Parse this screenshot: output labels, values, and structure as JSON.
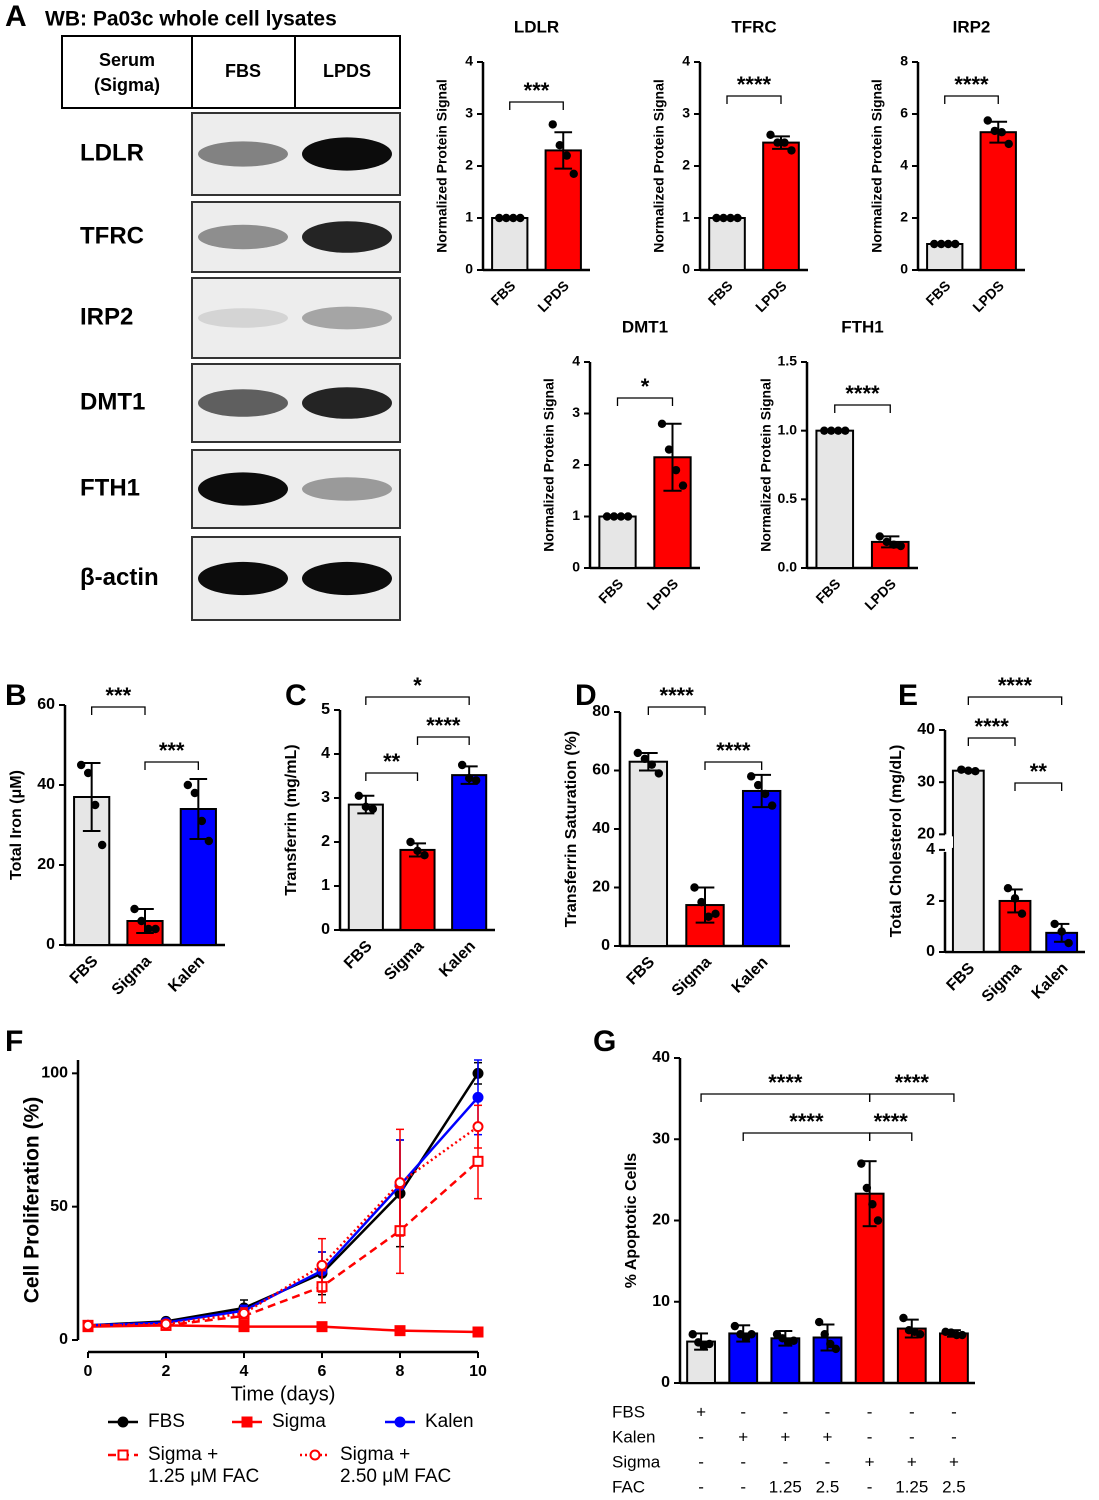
{
  "chart_data": [
    {
      "type": "blot",
      "panel": "A",
      "title": "WB: Pa03c whole cell lysates",
      "header_label": [
        "Serum",
        "(Sigma)"
      ],
      "columns": [
        "FBS",
        "LPDS"
      ],
      "rows": [
        "LDLR",
        "TFRC",
        "IRP2",
        "DMT1",
        "FTH1",
        "β-actin"
      ]
    },
    {
      "type": "bar",
      "title": "LDLR",
      "y_label": "Normalized Protein Signal",
      "categories": [
        "FBS",
        "LPDS"
      ],
      "values": [
        1,
        2.3
      ],
      "errors": [
        0,
        0.35
      ],
      "points": [
        [
          1,
          1,
          1,
          1
        ],
        [
          2.8,
          2.4,
          2.2,
          1.85
        ]
      ],
      "colors": [
        "#e6e6e6",
        "#ff0000"
      ],
      "ylim": [
        0,
        4
      ],
      "yticks": [
        0,
        1,
        2,
        3,
        4
      ],
      "significance": [
        {
          "from": 0,
          "to": 1,
          "label": "***"
        }
      ]
    },
    {
      "type": "bar",
      "title": "TFRC",
      "y_label": "Normalized Protein Signal",
      "categories": [
        "FBS",
        "LPDS"
      ],
      "values": [
        1,
        2.45
      ],
      "errors": [
        0,
        0.12
      ],
      "points": [
        [
          1,
          1,
          1,
          1
        ],
        [
          2.6,
          2.45,
          2.45,
          2.3
        ]
      ],
      "colors": [
        "#e6e6e6",
        "#ff0000"
      ],
      "ylim": [
        0,
        4
      ],
      "yticks": [
        0,
        1,
        2,
        3,
        4
      ],
      "significance": [
        {
          "from": 0,
          "to": 1,
          "label": "****"
        }
      ]
    },
    {
      "type": "bar",
      "title": "IRP2",
      "y_label": "Normalized Protein Signal",
      "categories": [
        "FBS",
        "LPDS"
      ],
      "values": [
        1,
        5.3
      ],
      "errors": [
        0,
        0.4
      ],
      "points": [
        [
          1,
          1,
          1,
          1
        ],
        [
          5.75,
          5.35,
          5.3,
          4.85
        ]
      ],
      "colors": [
        "#e6e6e6",
        "#ff0000"
      ],
      "ylim": [
        0,
        8
      ],
      "yticks": [
        0,
        2,
        4,
        6,
        8
      ],
      "significance": [
        {
          "from": 0,
          "to": 1,
          "label": "****"
        }
      ]
    },
    {
      "type": "bar",
      "title": "DMT1",
      "y_label": "Normalized Protein Signal",
      "categories": [
        "FBS",
        "LPDS"
      ],
      "values": [
        1,
        2.15
      ],
      "errors": [
        0,
        0.65
      ],
      "points": [
        [
          1,
          1,
          1,
          1
        ],
        [
          2.8,
          2.3,
          1.9,
          1.6
        ]
      ],
      "colors": [
        "#e6e6e6",
        "#ff0000"
      ],
      "ylim": [
        0,
        4
      ],
      "yticks": [
        0,
        1,
        2,
        3,
        4
      ],
      "significance": [
        {
          "from": 0,
          "to": 1,
          "label": "*"
        }
      ]
    },
    {
      "type": "bar",
      "title": "FTH1",
      "y_label": "Normalized Protein Signal",
      "categories": [
        "FBS",
        "LPDS"
      ],
      "values": [
        1,
        0.19
      ],
      "errors": [
        0,
        0.04
      ],
      "points": [
        [
          1,
          1,
          1,
          1
        ],
        [
          0.23,
          0.19,
          0.17,
          0.16
        ]
      ],
      "colors": [
        "#e6e6e6",
        "#ff0000"
      ],
      "ylim": [
        0,
        1.5
      ],
      "yticks": [
        {
          "value": 0,
          "label": "0.0"
        },
        0.5,
        {
          "value": 1,
          "label": "1.0"
        },
        1.5
      ],
      "significance": [
        {
          "from": 0,
          "to": 1,
          "label": "****"
        }
      ]
    },
    {
      "type": "bar",
      "panel": "B",
      "y_label": "Total Iron (μM)",
      "categories": [
        "FBS",
        "Sigma",
        "Kalen"
      ],
      "values": [
        37,
        6,
        34
      ],
      "errors": [
        8.5,
        3,
        7.5
      ],
      "points": [
        [
          45,
          43,
          35,
          25
        ],
        [
          9,
          6,
          4,
          4
        ],
        [
          40,
          38,
          31,
          26
        ]
      ],
      "colors": [
        "#e6e6e6",
        "#ff0000",
        "#0000ff"
      ],
      "ylim": [
        0,
        60
      ],
      "yticks": [
        0,
        20,
        40,
        60
      ],
      "significance": [
        {
          "from": 0,
          "to": 1,
          "label": "***"
        },
        {
          "from": 1,
          "to": 2,
          "label": "***"
        }
      ]
    },
    {
      "type": "bar",
      "panel": "C",
      "y_label": "Transferrin (mg/mL)",
      "categories": [
        "FBS",
        "Sigma",
        "Kalen"
      ],
      "values": [
        2.85,
        1.82,
        3.52
      ],
      "errors": [
        0.2,
        0.15,
        0.2
      ],
      "points": [
        [
          3.05,
          2.8,
          2.75
        ],
        [
          2.0,
          1.8,
          1.7
        ],
        [
          3.75,
          3.45,
          3.4
        ]
      ],
      "colors": [
        "#e6e6e6",
        "#ff0000",
        "#0000ff"
      ],
      "ylim": [
        0,
        5
      ],
      "yticks": [
        0,
        1,
        2,
        3,
        4,
        5
      ],
      "significance": [
        {
          "from": 0,
          "to": 2,
          "label": "*"
        },
        {
          "from": 1,
          "to": 2,
          "label": "****"
        },
        {
          "from": 0,
          "to": 1,
          "label": "**"
        }
      ]
    },
    {
      "type": "bar",
      "panel": "D",
      "y_label": "Transferrin Saturation (%)",
      "categories": [
        "FBS",
        "Sigma",
        "Kalen"
      ],
      "values": [
        63,
        14,
        53
      ],
      "errors": [
        3,
        6,
        5.5
      ],
      "points": [
        [
          66,
          64,
          62,
          59
        ],
        [
          20,
          15,
          10,
          11
        ],
        [
          58,
          55,
          52,
          48
        ]
      ],
      "colors": [
        "#e6e6e6",
        "#ff0000",
        "#0000ff"
      ],
      "ylim": [
        0,
        80
      ],
      "yticks": [
        0,
        20,
        40,
        60,
        80
      ],
      "significance": [
        {
          "from": 0,
          "to": 1,
          "label": "****"
        },
        {
          "from": 1,
          "to": 2,
          "label": "****"
        }
      ]
    },
    {
      "type": "bar",
      "panel": "E",
      "y_label": "Total Cholesterol (mg/dL)",
      "categories": [
        "FBS",
        "Sigma",
        "Kalen"
      ],
      "values": [
        32.2,
        2.0,
        0.75
      ],
      "errors": [
        0.2,
        0.45,
        0.35
      ],
      "points": [
        [
          32.4,
          32.2,
          32.1
        ],
        [
          2.5,
          2.1,
          1.5
        ],
        [
          1.1,
          0.8,
          0.35
        ]
      ],
      "colors": [
        "#e6e6e6",
        "#ff0000",
        "#0000ff"
      ],
      "ylim": [
        0,
        40
      ],
      "axis_break": [
        4,
        20
      ],
      "yticks": [
        0,
        2,
        4,
        20,
        30,
        40
      ],
      "significance": [
        {
          "from": 0,
          "to": 2,
          "label": "****"
        },
        {
          "from": 0,
          "to": 1,
          "label": "****"
        },
        {
          "from": 1,
          "to": 2,
          "label": "**"
        }
      ]
    },
    {
      "type": "line",
      "panel": "F",
      "x_label": "Time (days)",
      "y_label": "Cell Proliferation (%)",
      "x": [
        0,
        2,
        4,
        6,
        8,
        10
      ],
      "xlim": [
        0,
        10
      ],
      "xticks": [
        0,
        2,
        4,
        6,
        8,
        10
      ],
      "ylim": [
        0,
        105
      ],
      "yticks": [
        0,
        50,
        100
      ],
      "series": [
        {
          "name": "FBS",
          "color": "#000000",
          "marker": "circle",
          "dash": "solid",
          "values": [
            5.5,
            7,
            12,
            25,
            55,
            100
          ],
          "errors": [
            0.5,
            0.5,
            3,
            8,
            20,
            4
          ]
        },
        {
          "name": "Sigma",
          "color": "#ff0000",
          "marker": "square",
          "dash": "solid",
          "values": [
            5,
            5.5,
            5,
            5,
            3.5,
            3
          ],
          "errors": [
            0.5,
            0.5,
            0.5,
            0.5,
            0.5,
            0.5
          ]
        },
        {
          "name": "Kalen",
          "color": "#0000ff",
          "marker": "circle",
          "dash": "solid",
          "values": [
            5.5,
            6.5,
            11,
            26,
            58,
            91
          ],
          "errors": [
            0.5,
            0.5,
            2,
            7,
            17,
            14
          ]
        },
        {
          "name": "Sigma + 1.25 μM FAC",
          "color": "#ff0000",
          "marker": "open-square",
          "dash": "dashed",
          "values": [
            5.5,
            5.5,
            9,
            20,
            41,
            67
          ],
          "errors": [
            0.5,
            0.5,
            2,
            6,
            16,
            14
          ]
        },
        {
          "name": "Sigma + 2.50 μM FAC",
          "color": "#ff0000",
          "marker": "open-circle",
          "dash": "dotted",
          "values": [
            5.5,
            6,
            10,
            28,
            59,
            80
          ],
          "errors": [
            0.5,
            0.5,
            2,
            10,
            20,
            8
          ]
        }
      ]
    },
    {
      "type": "bar",
      "panel": "G",
      "y_label": "% Apoptotic Cells",
      "categories": [
        null,
        null,
        null,
        null,
        null,
        null,
        null
      ],
      "values": [
        5.1,
        6.1,
        5.5,
        5.6,
        23.3,
        6.7,
        6.1
      ],
      "errors": [
        1,
        1,
        0.9,
        1.6,
        4,
        1.1,
        0.4
      ],
      "points": [
        [
          6,
          5,
          4.5,
          4.8
        ],
        [
          7,
          6,
          5.5,
          6
        ],
        [
          6,
          5.5,
          5,
          5.2
        ],
        [
          7.5,
          6,
          4.8,
          4.2
        ],
        [
          27,
          24,
          22,
          20
        ],
        [
          8,
          6.5,
          6.3,
          6
        ],
        [
          6.3,
          6.2,
          5.9,
          5.9
        ]
      ],
      "colors": [
        "#e6e6e6",
        "#0000ff",
        "#0000ff",
        "#0000ff",
        "#ff0000",
        "#ff0000",
        "#ff0000"
      ],
      "ylim": [
        0,
        40
      ],
      "yticks": [
        0,
        10,
        20,
        30,
        40
      ],
      "significance": [
        {
          "from": 0,
          "to": 4,
          "label": "****"
        },
        {
          "from": 4,
          "to": 6,
          "label": "****"
        },
        {
          "from": 1,
          "to": 4,
          "label": "****"
        },
        {
          "from": 4,
          "to": 5,
          "label": "****"
        }
      ],
      "conditions": {
        "rows": [
          "FBS",
          "Kalen",
          "Sigma",
          "FAC"
        ],
        "cells": [
          [
            "+",
            "-",
            "-",
            "-",
            "-",
            "-",
            "-"
          ],
          [
            "-",
            "+",
            "+",
            "+",
            "-",
            "-",
            "-"
          ],
          [
            "-",
            "-",
            "-",
            "-",
            "+",
            "+",
            "+"
          ],
          [
            "-",
            "-",
            "1.25",
            "2.5",
            "-",
            "1.25",
            "2.5"
          ]
        ]
      }
    }
  ]
}
